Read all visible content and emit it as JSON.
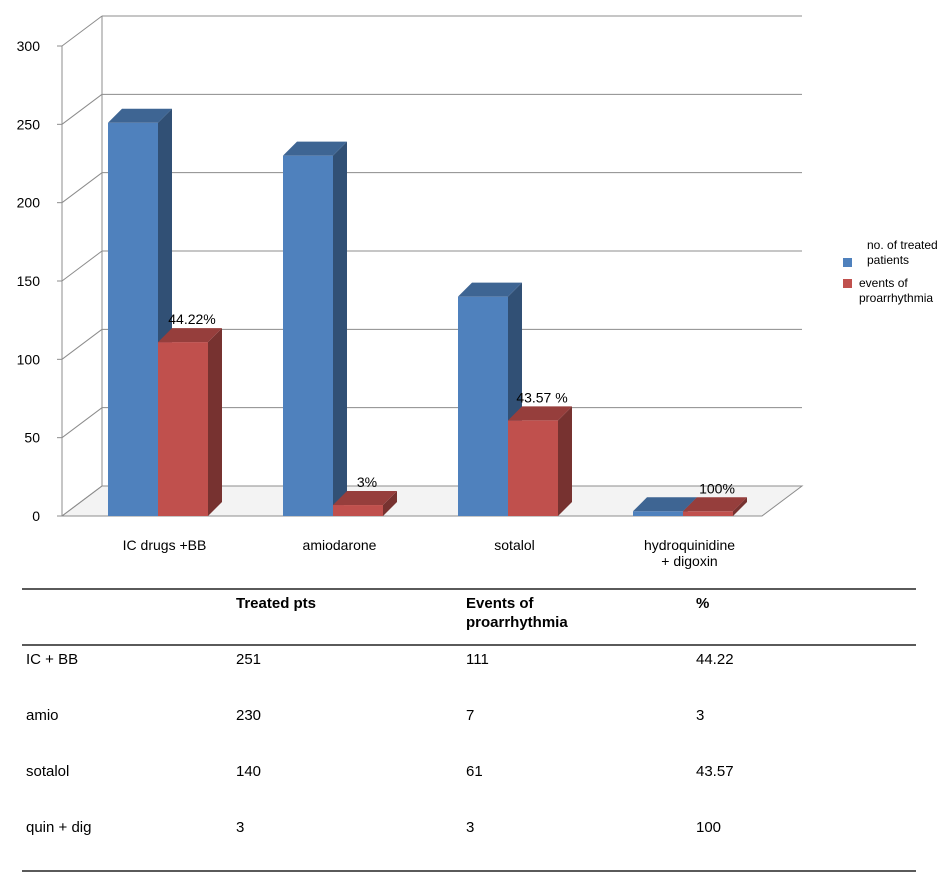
{
  "chart_data": {
    "type": "bar",
    "categories": [
      "IC drugs +BB",
      "amiodarone",
      "sotalol",
      "hydroquinidine + digoxin"
    ],
    "series": [
      {
        "name": "no. of treated patients",
        "values": [
          251,
          230,
          140,
          3
        ],
        "color": "#4f81bd"
      },
      {
        "name": "events of proarrhythmia",
        "values": [
          111,
          7,
          61,
          3
        ],
        "color": "#c0504d"
      }
    ],
    "data_labels": [
      "44.22%",
      "3%",
      "43.57 %",
      "100%"
    ],
    "yticks": [
      "0",
      "50",
      "100",
      "150",
      "200",
      "250",
      "300"
    ],
    "ylim": [
      0,
      300
    ],
    "grid": true,
    "legend_position": "right",
    "three_d": true
  },
  "table": {
    "headers": [
      "",
      "Treated pts",
      "Events of proarrhythmia",
      "%"
    ],
    "rows": [
      [
        "IC + BB",
        "251",
        "111",
        "44.22"
      ],
      [
        "amio",
        "230",
        "7",
        "3"
      ],
      [
        "sotalol",
        "140",
        "61",
        "43.57"
      ],
      [
        "quin + dig",
        "3",
        "3",
        "100"
      ]
    ]
  }
}
